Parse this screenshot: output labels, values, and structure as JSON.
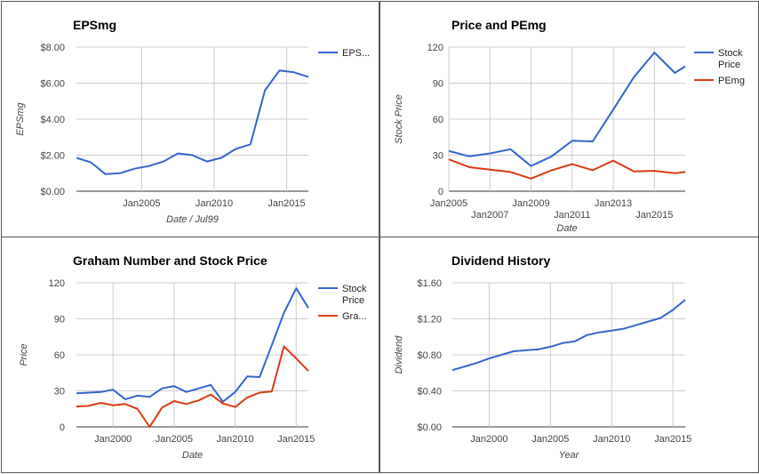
{
  "colors": {
    "blue": "#3366cc",
    "red": "#dc3912",
    "grid": "#cccccc",
    "axis": "#333333",
    "label": "#444444"
  },
  "chart_data": [
    {
      "id": "eps",
      "type": "line",
      "title": "EPSmg",
      "xlabel": "Date / Jul99",
      "ylabel": "EPSmg",
      "xlim": [
        2000.5,
        2016.5
      ],
      "ylim": [
        0,
        8
      ],
      "x_ticks": [
        2005,
        2010,
        2015
      ],
      "x_tick_labels": [
        "Jan2005",
        "Jan2010",
        "Jan2015"
      ],
      "y_ticks": [
        0,
        2,
        4,
        6,
        8
      ],
      "y_tick_labels": [
        "$0.00",
        "$2.00",
        "$4.00",
        "$6.00",
        "$8.00"
      ],
      "legend_position": "right",
      "series": [
        {
          "name": "EPS...",
          "color": "#3366cc",
          "x": [
            2000.5,
            2001.5,
            2002.5,
            2003.5,
            2004.5,
            2005.5,
            2006.5,
            2007.5,
            2008.5,
            2009.5,
            2010.5,
            2011.5,
            2012.5,
            2013.5,
            2014.5,
            2015.5,
            2016.5
          ],
          "y": [
            1.85,
            1.6,
            0.95,
            1.0,
            1.25,
            1.4,
            1.65,
            2.1,
            2.0,
            1.65,
            1.85,
            2.35,
            2.6,
            5.6,
            6.7,
            6.6,
            6.35
          ]
        }
      ]
    },
    {
      "id": "price-pe",
      "type": "line",
      "title": "Price and PEmg",
      "xlabel": "Date",
      "ylabel": "Stock Price",
      "xlim": [
        2005,
        2016.5
      ],
      "ylim": [
        0,
        120
      ],
      "x_ticks": [
        2005,
        2007,
        2009,
        2011,
        2013,
        2015
      ],
      "x_tick_labels": [
        "Jan2005",
        "Jan2007",
        "Jan2009",
        "Jan2011",
        "Jan2013",
        "Jan2015"
      ],
      "y_ticks": [
        0,
        30,
        60,
        90,
        120
      ],
      "y_tick_labels": [
        "0",
        "30",
        "60",
        "90",
        "120"
      ],
      "legend_position": "right",
      "series": [
        {
          "name": "Stock Price",
          "color": "#3366cc",
          "x": [
            2005,
            2006,
            2007,
            2008,
            2009,
            2010,
            2011,
            2012,
            2013,
            2014,
            2015,
            2016,
            2016.5
          ],
          "y": [
            33.5,
            29,
            31.5,
            35,
            21,
            29,
            42,
            41.5,
            68,
            95,
            115.5,
            98.5,
            104
          ]
        },
        {
          "name": "PEmg",
          "color": "#dc3912",
          "x": [
            2005,
            2006,
            2007,
            2008,
            2009,
            2010,
            2011,
            2012,
            2013,
            2014,
            2015,
            2016,
            2016.5
          ],
          "y": [
            26.5,
            20,
            18,
            16,
            10.5,
            17.5,
            22.5,
            17.5,
            25.5,
            16.5,
            17,
            15,
            16
          ]
        }
      ]
    },
    {
      "id": "graham",
      "type": "line",
      "title": "Graham Number and Stock Price",
      "xlabel": "Date",
      "ylabel": "Price",
      "xlim": [
        1997,
        2016
      ],
      "ylim": [
        0,
        120
      ],
      "x_ticks": [
        2000,
        2005,
        2010,
        2015
      ],
      "x_tick_labels": [
        "Jan2000",
        "Jan2005",
        "Jan2010",
        "Jan2015"
      ],
      "y_ticks": [
        0,
        30,
        60,
        90,
        120
      ],
      "y_tick_labels": [
        "0",
        "30",
        "60",
        "90",
        "120"
      ],
      "legend_position": "right",
      "series": [
        {
          "name": "Stock Price",
          "color": "#3366cc",
          "x": [
            1997,
            1998,
            1999,
            2000,
            2001,
            2002,
            2003,
            2004,
            2005,
            2006,
            2007,
            2008,
            2009,
            2010,
            2011,
            2012,
            2013,
            2014,
            2015,
            2016
          ],
          "y": [
            28,
            28.5,
            29,
            31,
            23,
            26,
            25,
            32,
            34,
            29,
            32,
            35,
            21,
            29,
            42,
            41.5,
            68,
            95,
            115.5,
            99
          ]
        },
        {
          "name": "Gra...",
          "color": "#dc3912",
          "x": [
            1997,
            1998,
            1999,
            2000,
            2001,
            2002,
            2003,
            2004,
            2005,
            2006,
            2007,
            2008,
            2009,
            2010,
            2011,
            2012,
            2013,
            2014,
            2015,
            2016
          ],
          "y": [
            17,
            17.5,
            20,
            18,
            19,
            15,
            0,
            16,
            21.5,
            19,
            22,
            27,
            19.5,
            16.5,
            24.5,
            28.5,
            29.5,
            67,
            57,
            46.5
          ]
        }
      ]
    },
    {
      "id": "dividend",
      "type": "line",
      "title": "Dividend History",
      "xlabel": "Year",
      "ylabel": "Dividend",
      "xlim": [
        1997,
        2016
      ],
      "ylim": [
        0,
        1.6
      ],
      "x_ticks": [
        2000,
        2005,
        2010,
        2015
      ],
      "x_tick_labels": [
        "Jan2000",
        "Jan2005",
        "Jan2010",
        "Jan2015"
      ],
      "y_ticks": [
        0,
        0.4,
        0.8,
        1.2,
        1.6
      ],
      "y_tick_labels": [
        "$0.00",
        "$0.40",
        "$0.80",
        "$1.20",
        "$1.60"
      ],
      "legend_position": "none",
      "series": [
        {
          "name": "",
          "color": "#3366cc",
          "x": [
            1997,
            1998,
            1999,
            2000,
            2001,
            2002,
            2003,
            2004,
            2005,
            2006,
            2007,
            2008,
            2009,
            2010,
            2011,
            2012,
            2013,
            2014,
            2015,
            2016
          ],
          "y": [
            0.63,
            0.67,
            0.71,
            0.76,
            0.8,
            0.84,
            0.85,
            0.86,
            0.89,
            0.93,
            0.95,
            1.02,
            1.05,
            1.07,
            1.09,
            1.13,
            1.17,
            1.21,
            1.3,
            1.41
          ]
        }
      ]
    }
  ]
}
